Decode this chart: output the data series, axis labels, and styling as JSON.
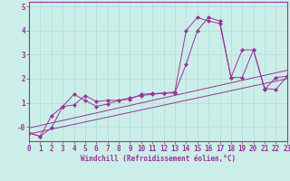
{
  "xlabel": "Windchill (Refroidissement éolien,°C)",
  "background_color": "#cceee8",
  "line_color": "#993399",
  "grid_color": "#aadddd",
  "xlim": [
    0,
    23
  ],
  "ylim": [
    -0.6,
    5.2
  ],
  "yticks": [
    0,
    1,
    2,
    3,
    4,
    5
  ],
  "ytick_labels": [
    "-0",
    "1",
    "2",
    "3",
    "4",
    "5"
  ],
  "xticks": [
    0,
    1,
    2,
    3,
    4,
    5,
    6,
    7,
    8,
    9,
    10,
    11,
    12,
    13,
    14,
    15,
    16,
    17,
    18,
    19,
    20,
    21,
    22,
    23
  ],
  "line1_x": [
    0,
    1,
    2,
    3,
    4,
    5,
    6,
    7,
    8,
    9,
    10,
    11,
    12,
    13,
    14,
    15,
    16,
    17,
    18,
    19,
    20,
    21,
    22,
    23
  ],
  "line1_y": [
    -0.25,
    -0.4,
    0.45,
    0.85,
    1.35,
    1.1,
    0.85,
    0.95,
    1.1,
    1.15,
    1.35,
    1.38,
    1.4,
    1.4,
    2.6,
    4.0,
    4.55,
    4.4,
    2.05,
    3.2,
    3.2,
    1.55,
    2.05,
    2.1
  ],
  "line2_x": [
    0,
    1,
    2,
    3,
    4,
    5,
    6,
    7,
    8,
    9,
    10,
    11,
    12,
    13,
    14,
    15,
    16,
    17,
    18,
    19,
    20,
    21,
    22,
    23
  ],
  "line2_y": [
    -0.25,
    -0.4,
    -0.05,
    0.85,
    0.9,
    1.3,
    1.05,
    1.1,
    1.1,
    1.2,
    1.3,
    1.35,
    1.4,
    1.45,
    4.0,
    4.55,
    4.4,
    4.3,
    2.05,
    2.05,
    3.2,
    1.6,
    1.55,
    2.1
  ],
  "line3_x": [
    0,
    23
  ],
  "line3_y": [
    -0.3,
    2.0
  ],
  "line4_x": [
    0,
    23
  ],
  "line4_y": [
    -0.05,
    2.35
  ],
  "figsize": [
    3.2,
    2.0
  ],
  "dpi": 100
}
